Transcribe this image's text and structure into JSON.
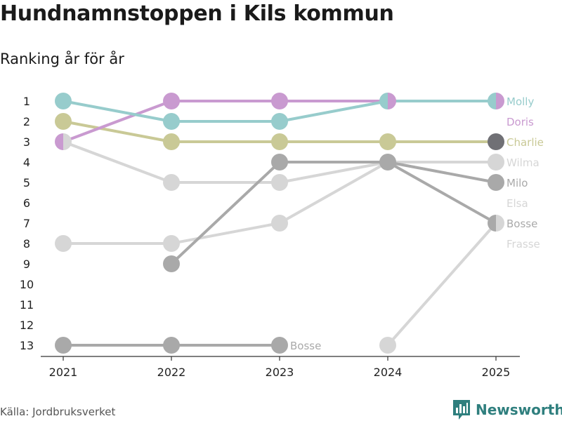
{
  "chart_data": {
    "type": "line",
    "chart_kind": "bump",
    "title": "Hundnamnstoppen i Kils kommun",
    "subtitle": "Ranking år för år",
    "x": [
      2021,
      2022,
      2023,
      2024,
      2025
    ],
    "x_tick_labels": [
      "2021",
      "2022",
      "2023",
      "2024",
      "2025"
    ],
    "y_tick_labels": [
      "1",
      "2",
      "3",
      "4",
      "5",
      "6",
      "7",
      "8",
      "9",
      "10",
      "11",
      "12",
      "13"
    ],
    "ylim": [
      1,
      13
    ],
    "y_reversed": true,
    "series": [
      {
        "name": "Frasse",
        "color": "#d6d6d6",
        "ranks": [
          null,
          null,
          null,
          13,
          7
        ],
        "shared": [
          false,
          false,
          false,
          false,
          true
        ],
        "end_label": "Frasse",
        "end_rank": 8
      },
      {
        "name": "Bosse",
        "color": "#a9a9a9",
        "ranks": [
          13,
          13,
          13,
          null,
          null
        ],
        "shared": [
          false,
          false,
          false,
          false,
          false
        ],
        "end_label": "Bosse",
        "end_rank": 13,
        "end_index": 2
      },
      {
        "name": "Elsa",
        "color": "#d6d6d6",
        "ranks": [
          8,
          8,
          7,
          4,
          null
        ],
        "shared": [
          false,
          false,
          false,
          false,
          false
        ],
        "end_label": "Elsa",
        "end_rank": 6
      },
      {
        "name": "Wilma",
        "color": "#d6d6d6",
        "ranks": [
          3,
          5,
          5,
          4,
          4
        ],
        "shared": [
          true,
          false,
          false,
          false,
          false
        ],
        "end_label": "Wilma",
        "end_rank": 4
      },
      {
        "name": "Bosse",
        "color": "#a9a9a9",
        "ranks": [
          null,
          9,
          4,
          4,
          7
        ],
        "shared": [
          false,
          false,
          false,
          false,
          true
        ],
        "end_label": "Bosse",
        "end_rank": 7
      },
      {
        "name": "Milo",
        "color": "#a9a9a9",
        "ranks": [
          null,
          null,
          4,
          4,
          5
        ],
        "shared": [
          false,
          false,
          false,
          true,
          true
        ],
        "end_label": "Milo",
        "end_rank": 5
      },
      {
        "name": "Charlie",
        "color": "#c9c996",
        "ranks": [
          2,
          3,
          3,
          3,
          3
        ],
        "shared": [
          false,
          false,
          false,
          false,
          false
        ],
        "end_label": "Charlie",
        "end_rank": 3
      },
      {
        "name": "Doris",
        "color": "#c99ad0",
        "ranks": [
          3,
          1,
          1,
          1,
          1
        ],
        "shared": [
          true,
          false,
          false,
          true,
          true
        ],
        "end_label": "Doris",
        "end_rank": 2
      },
      {
        "name": "Molly",
        "color": "#97cccc",
        "ranks": [
          1,
          2,
          2,
          1,
          1
        ],
        "shared": [
          false,
          false,
          false,
          true,
          true
        ],
        "end_label": "Molly",
        "end_rank": 1
      }
    ],
    "shared_marker_colors": {
      "4_3": "#707075"
    }
  },
  "footer": {
    "source": "Källa: Jordbruksverket",
    "brand": "Newsworthy"
  }
}
